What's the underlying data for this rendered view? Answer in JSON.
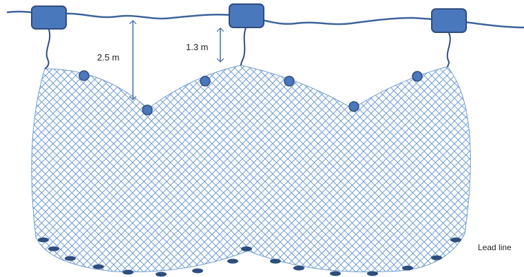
{
  "diagram": {
    "colors": {
      "rope": "#3b639b",
      "float_fill": "#4a78bd",
      "float_stroke": "#2f4d7d",
      "net": "#6e9bd2",
      "bead": "#4a78bd",
      "lead": "#2d4e7e",
      "arrow": "#3f6cab"
    },
    "labels": {
      "depth_long": "2.5 m",
      "depth_short": "1.3 m",
      "lead_line": "Lead line"
    },
    "float_count": 3,
    "bead_count": 6,
    "lead_weight_count": 17
  }
}
